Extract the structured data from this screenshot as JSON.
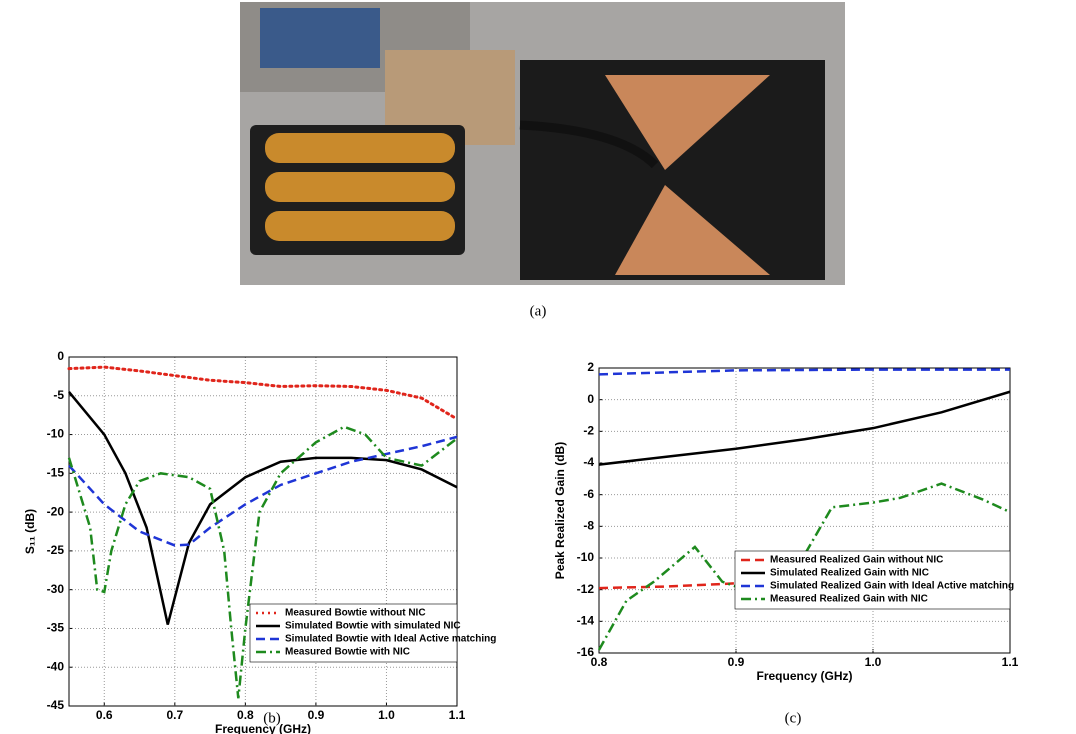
{
  "captions": [
    "(a)",
    "(b)",
    "(c)"
  ],
  "chart_data": [
    {
      "type": "line",
      "xlabel": "Frequency (GHz)",
      "ylabel": "S₁₁ (dB)",
      "xlim": [
        0.55,
        1.1
      ],
      "xticks": [
        0.6,
        0.7,
        0.8,
        0.9,
        {
          "value": 1,
          "label": "1.0"
        },
        1.1
      ],
      "ylim": [
        -45,
        0
      ],
      "yticks": [
        0,
        -5,
        -10,
        -15,
        -20,
        -25,
        -30,
        -35,
        -40,
        -45
      ],
      "grid": true,
      "legend": "lower right",
      "series": [
        {
          "name": "Measured Bowtie without NIC",
          "color": "#e0251b",
          "style": "dotted",
          "x": [
            0.55,
            0.6,
            0.65,
            0.7,
            0.75,
            0.8,
            0.85,
            0.9,
            0.95,
            1.0,
            1.05,
            1.1
          ],
          "values": [
            -1.5,
            -1.3,
            -1.8,
            -2.4,
            -3,
            -3.3,
            -3.8,
            -3.7,
            -3.8,
            -4.3,
            -5.3,
            -8
          ]
        },
        {
          "name": "Simulated Bowtie with simulated NIC",
          "color": "#000000",
          "style": "solid",
          "x": [
            0.55,
            0.6,
            0.63,
            0.66,
            0.69,
            0.7,
            0.72,
            0.75,
            0.8,
            0.85,
            0.9,
            0.95,
            1.0,
            1.05,
            1.1
          ],
          "values": [
            -4.5,
            -10,
            -15,
            -22,
            -34.5,
            -31,
            -24,
            -19,
            -15.5,
            -13.5,
            -13,
            -13,
            -13.3,
            -14.5,
            -16.8
          ]
        },
        {
          "name": "Simulated Bowtie with Ideal Active matching",
          "color": "#1f35d6",
          "style": "dashed",
          "x": [
            0.55,
            0.6,
            0.65,
            0.7,
            0.72,
            0.75,
            0.8,
            0.85,
            0.9,
            0.95,
            1.0,
            1.05,
            1.1
          ],
          "values": [
            -14,
            -19,
            -22.5,
            -24.3,
            -24.2,
            -22,
            -19,
            -16.5,
            -15,
            -13.5,
            -12.5,
            -11.5,
            -10.3
          ]
        },
        {
          "name": "Measured Bowtie with NIC",
          "color": "#1e8a1e",
          "style": "dashdot",
          "x": [
            0.55,
            0.58,
            0.59,
            0.6,
            0.61,
            0.63,
            0.65,
            0.68,
            0.72,
            0.75,
            0.77,
            0.78,
            0.79,
            0.8,
            0.82,
            0.85,
            0.9,
            0.94,
            0.97,
            1.0,
            1.05,
            1.1
          ],
          "values": [
            -13,
            -22,
            -30,
            -30.3,
            -25,
            -19,
            -16,
            -15,
            -15.5,
            -17,
            -25,
            -35,
            -44,
            -35,
            -20,
            -15,
            -11,
            -9,
            -10,
            -13,
            -14,
            -10.5
          ]
        }
      ]
    },
    {
      "type": "line",
      "xlabel": "Frequency (GHz)",
      "ylabel": "Peak Realized Gain (dB)",
      "xlim": [
        0.8,
        1.1
      ],
      "xticks": [
        0.8,
        0.9,
        {
          "value": 1,
          "label": "1.0"
        },
        1.1
      ],
      "ylim": [
        -16,
        2
      ],
      "yticks": [
        2,
        0,
        -2,
        -4,
        -6,
        -8,
        -10,
        -12,
        -14,
        -16
      ],
      "grid": true,
      "legend": "lower right",
      "series": [
        {
          "name": "Measured Realized Gain without NIC",
          "color": "#e0251b",
          "style": "dashed",
          "x": [
            0.8,
            0.85,
            0.9,
            0.95,
            1.0,
            1.05,
            1.1
          ],
          "values": [
            -11.9,
            -11.8,
            -11.6,
            -11.4,
            -11.2,
            -11,
            -10.9
          ]
        },
        {
          "name": "Simulated Realized Gain with NIC",
          "color": "#000000",
          "style": "solid",
          "x": [
            0.8,
            0.85,
            0.9,
            0.95,
            1.0,
            1.05,
            1.1
          ],
          "values": [
            -4.1,
            -3.6,
            -3.1,
            -2.5,
            -1.8,
            -0.8,
            0.5
          ]
        },
        {
          "name": "Simulated Realized Gain with Ideal Active matching",
          "color": "#1f35d6",
          "style": "dashed",
          "x": [
            0.8,
            0.9,
            1.0,
            1.1
          ],
          "values": [
            1.6,
            1.85,
            1.9,
            1.9
          ]
        },
        {
          "name": "Measured Realized Gain with NIC",
          "color": "#1e8a1e",
          "style": "dashdot",
          "x": [
            0.8,
            0.82,
            0.84,
            0.87,
            0.89,
            0.9,
            0.93,
            0.95,
            0.97,
            1.0,
            1.02,
            1.05,
            1.08,
            1.1
          ],
          "values": [
            -15.8,
            -12.7,
            -11.5,
            -9.3,
            -11.5,
            -11.8,
            -10.5,
            -9.8,
            -6.8,
            -6.5,
            -6.2,
            -5.3,
            -6.3,
            -7.1
          ]
        }
      ]
    }
  ]
}
